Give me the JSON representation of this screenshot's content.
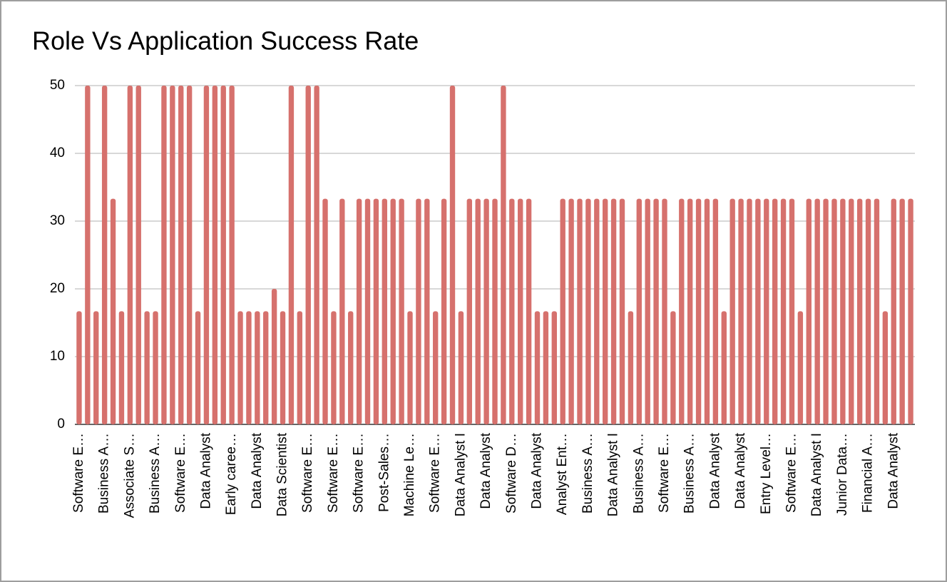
{
  "chart_data": {
    "type": "bar",
    "title": "Role Vs Application Success Rate",
    "categories": [
      "Software E…",
      null,
      null,
      "Business A…",
      null,
      null,
      "Associate S…",
      null,
      null,
      "Business A…",
      null,
      null,
      "Software E…",
      null,
      null,
      "Data Analyst",
      null,
      null,
      "Early caree…",
      null,
      null,
      "Data Analyst",
      null,
      null,
      "Data Scientist",
      null,
      null,
      "Software E…",
      null,
      null,
      "Software E…",
      null,
      null,
      "Software E…",
      null,
      null,
      "Post-Sales…",
      null,
      null,
      "Machine Le…",
      null,
      null,
      "Software E…",
      null,
      null,
      "Data Analyst I",
      null,
      null,
      "Data Analyst",
      null,
      null,
      "Software D…",
      null,
      null,
      "Data Analyst",
      null,
      null,
      "Analyst Ent…",
      null,
      null,
      "Business A…",
      null,
      null,
      "Data Analyst I",
      null,
      null,
      "Business A…",
      null,
      null,
      "Software E…",
      null,
      null,
      "Business A…",
      null,
      null,
      "Data Analyst",
      null,
      null,
      "Data Analyst",
      null,
      null,
      "Entry Level…",
      null,
      null,
      "Software E…",
      null,
      null,
      "Data Analyst I",
      null,
      null,
      "Junior Data…",
      null,
      null,
      "Financial A…",
      null,
      null,
      "Data Analyst",
      null,
      null
    ],
    "values": [
      16.7,
      50,
      16.7,
      50,
      33.3,
      16.7,
      50,
      50,
      16.7,
      16.7,
      50,
      50,
      50,
      50,
      16.7,
      50,
      50,
      50,
      50,
      16.7,
      16.7,
      16.7,
      16.7,
      20,
      16.7,
      50,
      16.7,
      50,
      50,
      33.3,
      16.7,
      33.3,
      16.7,
      33.3,
      33.3,
      33.3,
      33.3,
      33.3,
      33.3,
      16.7,
      33.3,
      33.3,
      16.7,
      33.3,
      50,
      16.7,
      33.3,
      33.3,
      33.3,
      33.3,
      50,
      33.3,
      33.3,
      33.3,
      16.7,
      16.7,
      16.7,
      33.3,
      33.3,
      33.3,
      33.3,
      33.3,
      33.3,
      33.3,
      33.3,
      16.7,
      33.3,
      33.3,
      33.3,
      33.3,
      16.7,
      33.3,
      33.3,
      33.3,
      33.3,
      33.3,
      16.7,
      33.3,
      33.3,
      33.3,
      33.3,
      33.3,
      33.3,
      33.3,
      33.3,
      16.7,
      33.3,
      33.3,
      33.3,
      33.3,
      33.3,
      33.3,
      33.3,
      33.3,
      33.3,
      16.7,
      33.3,
      33.3,
      33.3
    ],
    "color": "#d6716d",
    "ylim": [
      0,
      50
    ],
    "yticks": [
      0,
      10,
      20,
      30,
      40,
      50
    ],
    "grid": true
  }
}
